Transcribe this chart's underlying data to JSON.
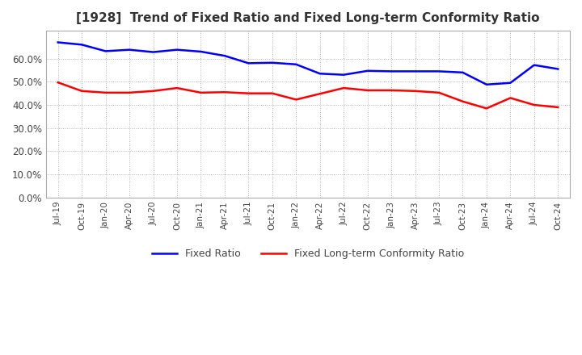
{
  "title": "[1928]  Trend of Fixed Ratio and Fixed Long-term Conformity Ratio",
  "x_labels": [
    "Jul-19",
    "Oct-19",
    "Jan-20",
    "Apr-20",
    "Jul-20",
    "Oct-20",
    "Jan-21",
    "Apr-21",
    "Jul-21",
    "Oct-21",
    "Jan-22",
    "Apr-22",
    "Jul-22",
    "Oct-22",
    "Jan-23",
    "Apr-23",
    "Jul-23",
    "Oct-23",
    "Jan-24",
    "Apr-24",
    "Jul-24",
    "Oct-24"
  ],
  "fixed_ratio": [
    0.67,
    0.66,
    0.632,
    0.638,
    0.628,
    0.638,
    0.63,
    0.612,
    0.58,
    0.582,
    0.575,
    0.535,
    0.53,
    0.547,
    0.545,
    0.545,
    0.545,
    0.54,
    0.488,
    0.495,
    0.572,
    0.555
  ],
  "fixed_lt_ratio": [
    0.497,
    0.46,
    0.453,
    0.453,
    0.46,
    0.473,
    0.453,
    0.455,
    0.45,
    0.45,
    0.423,
    0.448,
    0.473,
    0.463,
    0.463,
    0.46,
    0.453,
    0.415,
    0.385,
    0.43,
    0.4,
    0.39
  ],
  "fixed_ratio_color": "#0000FF",
  "fixed_lt_ratio_color": "#FF0000",
  "ylim": [
    0.0,
    0.72
  ],
  "yticks": [
    0.0,
    0.1,
    0.2,
    0.3,
    0.4,
    0.5,
    0.6
  ],
  "legend_fixed": "Fixed Ratio",
  "legend_lt": "Fixed Long-term Conformity Ratio",
  "background_color": "#ffffff",
  "grid_color": "#aaaaaa"
}
